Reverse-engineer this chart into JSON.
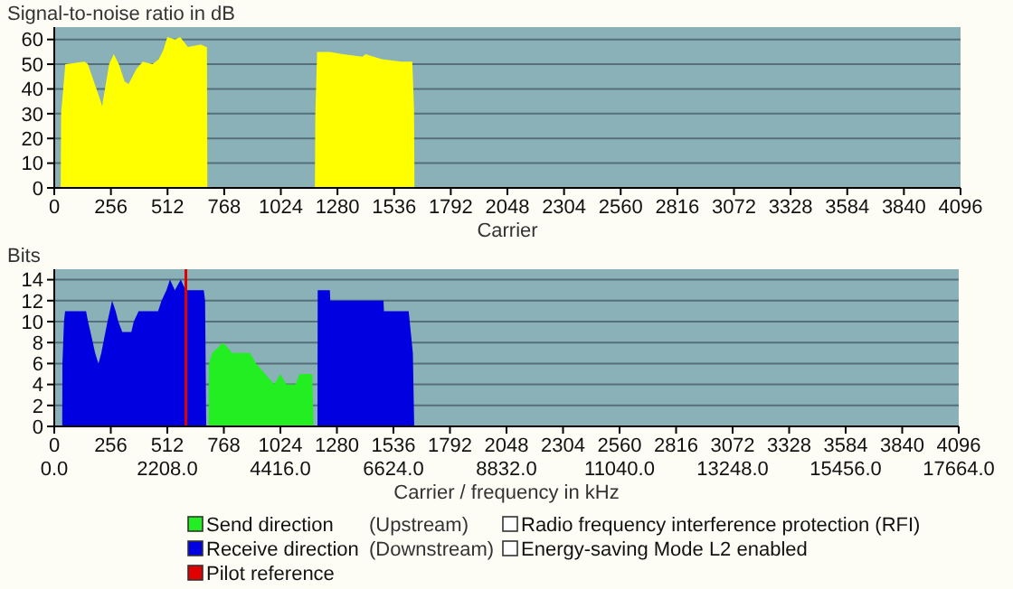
{
  "chart_data": [
    {
      "type": "area",
      "title": "Signal-to-noise ratio in dB",
      "xlabel": "Carrier",
      "xlim": [
        0,
        4096
      ],
      "xticks": [
        0,
        256,
        512,
        768,
        1024,
        1280,
        1536,
        1792,
        2048,
        2304,
        2560,
        2816,
        3072,
        3328,
        3584,
        3840,
        4096
      ],
      "ylim": [
        0,
        65
      ],
      "yticks": [
        0,
        10,
        20,
        30,
        40,
        50,
        60
      ],
      "grid": "y",
      "series": [
        {
          "color": "#ffff00",
          "x": [
            29,
            31,
            50,
            137,
            152,
            210,
            216,
            248,
            269,
            292,
            318,
            336,
            371,
            400,
            444,
            473,
            494,
            511,
            546,
            569,
            604,
            663,
            686,
            690,
            692,
            700,
            1170,
            1178,
            1180,
            1188,
            1247,
            1305,
            1393,
            1407,
            1480,
            1568,
            1618,
            1626,
            1628
          ],
          "values": [
            0,
            30,
            50,
            51,
            50,
            35,
            33,
            50,
            54,
            50,
            43,
            42,
            48,
            51,
            50,
            52,
            56,
            61,
            60,
            61,
            57,
            58,
            57,
            57,
            0,
            null,
            null,
            0,
            30,
            55,
            55,
            54,
            53,
            54,
            52,
            51,
            51,
            32,
            0
          ]
        }
      ]
    },
    {
      "type": "area",
      "title": "Bits",
      "xlabel": "Carrier / frequency in kHz",
      "xlim": [
        0,
        4096
      ],
      "xticks": [
        0,
        256,
        512,
        768,
        1024,
        1280,
        1536,
        1792,
        2048,
        2304,
        2560,
        2816,
        3072,
        3328,
        3584,
        3840,
        4096
      ],
      "x2lim": [
        0,
        17664
      ],
      "x2ticks": [
        {
          "value": 0,
          "label": "0.0"
        },
        {
          "value": 2208,
          "label": "2208.0"
        },
        {
          "value": 4416,
          "label": "4416.0"
        },
        {
          "value": 6624,
          "label": "6624.0"
        },
        {
          "value": 8832,
          "label": "8832.0"
        },
        {
          "value": 11040,
          "label": "11040.0"
        },
        {
          "value": 13248,
          "label": "13248.0"
        },
        {
          "value": 15456,
          "label": "15456.0"
        },
        {
          "value": 17664,
          "label": "17664.0"
        }
      ],
      "ylim": [
        0,
        15
      ],
      "yticks": [
        0,
        2,
        4,
        6,
        8,
        10,
        12,
        14
      ],
      "grid": "y",
      "legend": "bottom",
      "series": [
        {
          "name": "Send direction (Upstream)",
          "color": "#22ee22",
          "x": [
            699,
            701,
            715,
            765,
            806,
            887,
            914,
            955,
            996,
            1024,
            1051,
            1092,
            1111,
            1168,
            1174
          ],
          "values": [
            0,
            6,
            7,
            8,
            7,
            7,
            6,
            5,
            4,
            5,
            4,
            4,
            5,
            5,
            0
          ]
        },
        {
          "name": "Receive direction (Downstream)",
          "color": "#0000e0",
          "x": [
            36,
            37,
            44,
            49,
            144,
            153,
            164,
            185,
            200,
            213,
            241,
            262,
            278,
            290,
            308,
            349,
            360,
            382,
            470,
            486,
            508,
            524,
            546,
            573,
            595,
            677,
            683,
            688,
            692,
            1187,
            1192,
            1193,
            1248,
            1250,
            1491,
            1493,
            1605,
            1624,
            1630
          ],
          "values": [
            0,
            6,
            10,
            11,
            11,
            10,
            9,
            7,
            6,
            7,
            10,
            12,
            11,
            10,
            9,
            9,
            10,
            11,
            11,
            12,
            13,
            14,
            13,
            14,
            13,
            13,
            12,
            0,
            null,
            null,
            0,
            13,
            13,
            12,
            12,
            11,
            11,
            7,
            0
          ]
        }
      ],
      "ref_lines": [
        {
          "axis": "x",
          "value": 596,
          "label": "Pilot reference",
          "color": "#e00000"
        }
      ],
      "annotations": [
        "Radio frequency interference protection (RFI)",
        "Energy-saving Mode L2 enabled"
      ]
    }
  ]
}
